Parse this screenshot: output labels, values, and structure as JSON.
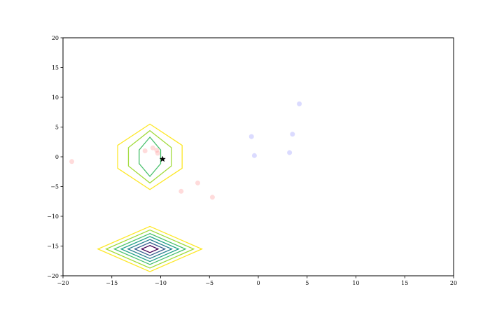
{
  "chart_data": {
    "type": "scatter",
    "title": "",
    "xlabel": "",
    "ylabel": "",
    "xlim": [
      -20,
      20
    ],
    "ylim": [
      -20,
      20
    ],
    "grid": false,
    "x_ticks": [
      -20,
      -15,
      -10,
      -5,
      0,
      5,
      10,
      15,
      20
    ],
    "y_ticks": [
      -20,
      -15,
      -10,
      -5,
      0,
      5,
      10,
      15,
      20
    ],
    "x_tick_labels": [
      "−20",
      "−15",
      "−10",
      "−5",
      "0",
      "5",
      "10",
      "15",
      "20"
    ],
    "y_tick_labels": [
      "−20",
      "−15",
      "−10",
      "−5",
      "0",
      "5",
      "10",
      "15",
      "20"
    ],
    "series": [
      {
        "color": "#ff9999",
        "alpha": 0.35,
        "points": [
          [
            -19.1,
            -0.8
          ],
          [
            -11.6,
            1.0
          ],
          [
            -10.8,
            1.5
          ],
          [
            -10.4,
            1.1
          ],
          [
            -10.3,
            0.6
          ],
          [
            -7.9,
            -5.8
          ],
          [
            -6.2,
            -4.4
          ],
          [
            -4.7,
            -6.8
          ]
        ]
      },
      {
        "color": "#9999ff",
        "alpha": 0.35,
        "points": [
          [
            -0.7,
            3.4
          ],
          [
            -0.4,
            0.2
          ],
          [
            3.2,
            0.7
          ],
          [
            3.5,
            3.8
          ],
          [
            4.2,
            8.9
          ]
        ]
      }
    ],
    "marker": {
      "symbol": "star",
      "x": -9.8,
      "y": -0.4,
      "color": "#000000"
    },
    "contours": [
      {
        "shape": "hexagon",
        "center": [
          -11.1,
          0.0
        ],
        "levels": [
          {
            "rx": 3.3,
            "ry": 5.5,
            "color": "#fde725"
          },
          {
            "rx": 2.2,
            "ry": 4.4,
            "color": "#a0da39"
          },
          {
            "rx": 1.1,
            "ry": 3.3,
            "color": "#4ac16d"
          }
        ]
      },
      {
        "shape": "diamond",
        "center": [
          -11.1,
          -15.5
        ],
        "levels": [
          {
            "rx": 3.8,
            "ry": 3.8,
            "color": "#fde725"
          },
          {
            "rx": 3.2,
            "ry": 3.2,
            "color": "#a0da39"
          },
          {
            "rx": 2.6,
            "ry": 2.6,
            "color": "#4ac16d"
          },
          {
            "rx": 2.1,
            "ry": 2.1,
            "color": "#1fa187"
          },
          {
            "rx": 1.6,
            "ry": 1.6,
            "color": "#277f8e"
          },
          {
            "rx": 1.1,
            "ry": 1.1,
            "color": "#365c8d"
          },
          {
            "rx": 0.6,
            "ry": 0.6,
            "color": "#440154"
          }
        ]
      }
    ]
  }
}
